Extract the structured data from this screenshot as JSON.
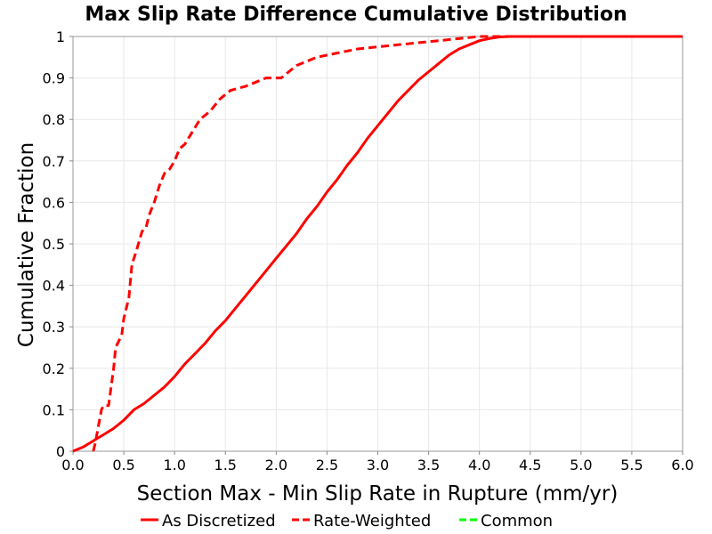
{
  "chart_data": {
    "type": "line",
    "title": "Max Slip Rate Difference Cumulative Distribution",
    "xlabel": "Section Max - Min Slip Rate in Rupture (mm/yr)",
    "ylabel": "Cumulative Fraction",
    "xlim": [
      0.0,
      6.0
    ],
    "ylim": [
      0,
      1
    ],
    "xticks": [
      "0.0",
      "0.5",
      "1.0",
      "1.5",
      "2.0",
      "2.5",
      "3.0",
      "3.5",
      "4.0",
      "4.5",
      "5.0",
      "5.5",
      "6.0"
    ],
    "yticks": [
      "0",
      "0.1",
      "0.2",
      "0.3",
      "0.4",
      "0.5",
      "0.6",
      "0.7",
      "0.8",
      "0.9",
      "1"
    ],
    "grid": true,
    "legend_position": "bottom",
    "series": [
      {
        "name": "As Discretized",
        "color": "#ff0000",
        "dash": "solid",
        "points": [
          [
            0.0,
            0.0
          ],
          [
            0.1,
            0.01
          ],
          [
            0.2,
            0.025
          ],
          [
            0.3,
            0.04
          ],
          [
            0.4,
            0.055
          ],
          [
            0.5,
            0.075
          ],
          [
            0.6,
            0.1
          ],
          [
            0.7,
            0.115
          ],
          [
            0.8,
            0.135
          ],
          [
            0.9,
            0.155
          ],
          [
            1.0,
            0.18
          ],
          [
            1.1,
            0.21
          ],
          [
            1.2,
            0.235
          ],
          [
            1.3,
            0.26
          ],
          [
            1.4,
            0.29
          ],
          [
            1.5,
            0.315
          ],
          [
            1.6,
            0.345
          ],
          [
            1.7,
            0.375
          ],
          [
            1.8,
            0.405
          ],
          [
            1.9,
            0.435
          ],
          [
            2.0,
            0.465
          ],
          [
            2.1,
            0.495
          ],
          [
            2.2,
            0.525
          ],
          [
            2.3,
            0.56
          ],
          [
            2.4,
            0.59
          ],
          [
            2.5,
            0.625
          ],
          [
            2.6,
            0.655
          ],
          [
            2.7,
            0.69
          ],
          [
            2.8,
            0.72
          ],
          [
            2.9,
            0.755
          ],
          [
            3.0,
            0.785
          ],
          [
            3.1,
            0.815
          ],
          [
            3.2,
            0.845
          ],
          [
            3.3,
            0.87
          ],
          [
            3.4,
            0.895
          ],
          [
            3.5,
            0.915
          ],
          [
            3.6,
            0.935
          ],
          [
            3.7,
            0.955
          ],
          [
            3.8,
            0.97
          ],
          [
            3.9,
            0.98
          ],
          [
            4.0,
            0.99
          ],
          [
            4.1,
            0.995
          ],
          [
            4.2,
            0.999
          ],
          [
            4.3,
            1.0
          ],
          [
            6.0,
            1.0
          ]
        ]
      },
      {
        "name": "Rate-Weighted",
        "color": "#ff0000",
        "dash": "dashed",
        "points": [
          [
            0.2,
            0.0
          ],
          [
            0.22,
            0.02
          ],
          [
            0.25,
            0.06
          ],
          [
            0.28,
            0.1
          ],
          [
            0.3,
            0.11
          ],
          [
            0.35,
            0.11
          ],
          [
            0.4,
            0.2
          ],
          [
            0.42,
            0.25
          ],
          [
            0.48,
            0.28
          ],
          [
            0.5,
            0.32
          ],
          [
            0.55,
            0.37
          ],
          [
            0.58,
            0.45
          ],
          [
            0.62,
            0.48
          ],
          [
            0.68,
            0.53
          ],
          [
            0.72,
            0.54
          ],
          [
            0.75,
            0.57
          ],
          [
            0.8,
            0.6
          ],
          [
            0.85,
            0.64
          ],
          [
            0.9,
            0.67
          ],
          [
            0.95,
            0.68
          ],
          [
            1.0,
            0.7
          ],
          [
            1.05,
            0.73
          ],
          [
            1.1,
            0.74
          ],
          [
            1.15,
            0.76
          ],
          [
            1.2,
            0.78
          ],
          [
            1.25,
            0.8
          ],
          [
            1.35,
            0.82
          ],
          [
            1.45,
            0.85
          ],
          [
            1.55,
            0.87
          ],
          [
            1.7,
            0.88
          ],
          [
            1.8,
            0.89
          ],
          [
            1.9,
            0.9
          ],
          [
            2.05,
            0.9
          ],
          [
            2.1,
            0.91
          ],
          [
            2.2,
            0.93
          ],
          [
            2.4,
            0.95
          ],
          [
            2.6,
            0.96
          ],
          [
            2.8,
            0.97
          ],
          [
            3.2,
            0.98
          ],
          [
            3.6,
            0.99
          ],
          [
            4.0,
            1.0
          ],
          [
            6.0,
            1.0
          ]
        ]
      },
      {
        "name": "Common",
        "color": "#00ff00",
        "dash": "dashed",
        "points": []
      }
    ]
  }
}
